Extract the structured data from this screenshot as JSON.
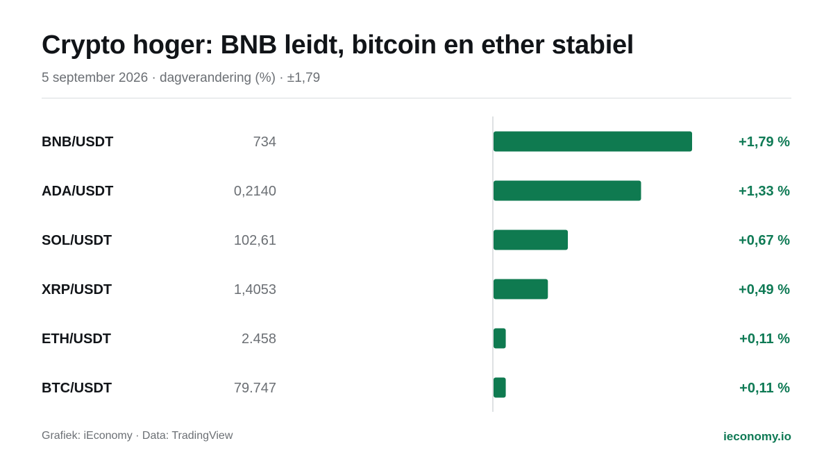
{
  "header": {
    "title": "Crypto hoger: BNB leidt, bitcoin en ether stabiel",
    "subtitle": "5 september 2026 · dagverandering (%) · ±1,79"
  },
  "footer": {
    "source": "Grafiek: iEconomy · Data: TradingView",
    "brand": "ieconomy.io"
  },
  "colors": {
    "positive": "#0f7a50",
    "positive_text": "#0f7a55"
  },
  "chart_data": {
    "type": "bar",
    "orientation": "horizontal",
    "title": "Crypto hoger: BNB leidt, bitcoin en ether stabiel",
    "subtitle": "5 september 2026 · dagverandering (%) · ±1,79",
    "xlim": [
      -1.79,
      1.79
    ],
    "grid": false,
    "categories": [
      "BNB/USDT",
      "ADA/USDT",
      "SOL/USDT",
      "XRP/USDT",
      "ETH/USDT",
      "BTC/USDT"
    ],
    "prices": [
      "734",
      "0,2140",
      "102,61",
      "1,4053",
      "2.458",
      "79.747"
    ],
    "values": [
      1.79,
      1.33,
      0.67,
      0.49,
      0.11,
      0.11
    ],
    "value_labels": [
      "+1,79 %",
      "+1,33 %",
      "+0,67 %",
      "+0,49 %",
      "+0,11 %",
      "+0,11 %"
    ]
  }
}
